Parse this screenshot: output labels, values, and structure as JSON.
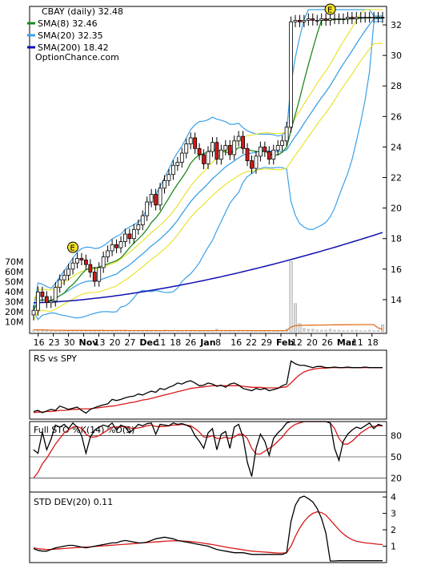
{
  "chart_data": [
    {
      "type": "candlestick",
      "ticker": "CBAY",
      "legend": [
        {
          "label": "CBAY (daily) 32.48",
          "color": "#000000"
        },
        {
          "label": "SMA(8) 32.46",
          "color": "#1c8a1c"
        },
        {
          "label": "SMA(20) 32.35",
          "color": "#3ba0e8"
        },
        {
          "label": "SMA(200) 18.42",
          "color": "#1010b0"
        }
      ],
      "source": "OptionChance.com",
      "event_marker": "E",
      "x_ticks": [
        "16",
        "23",
        "30",
        "Nov",
        "13",
        "20",
        "27",
        "Dec",
        "11",
        "18",
        "26",
        "Jan",
        "8",
        "16",
        "22",
        "29",
        "Feb",
        "12",
        "20",
        "26",
        "Mar",
        "11",
        "18"
      ],
      "y_ticks": [
        14,
        16,
        18,
        20,
        22,
        24,
        26,
        28,
        30,
        32
      ],
      "ylim": [
        12,
        33
      ],
      "volume_ticks": [
        "70M",
        "60M",
        "50M",
        "40M",
        "30M",
        "20M",
        "10M"
      ],
      "volume_ylim": [
        0,
        75
      ],
      "close": [
        13.3,
        14.5,
        14.2,
        13.8,
        13.9,
        14.8,
        15.3,
        15.6,
        16.0,
        16.4,
        16.7,
        16.6,
        16.3,
        15.8,
        15.2,
        16.1,
        16.8,
        17.2,
        17.6,
        17.4,
        17.8,
        18.3,
        18.0,
        18.6,
        18.9,
        19.5,
        20.4,
        20.9,
        20.2,
        21.3,
        21.8,
        22.2,
        22.8,
        23.0,
        23.6,
        24.2,
        24.6,
        23.9,
        23.5,
        22.9,
        23.7,
        24.3,
        23.2,
        23.8,
        24.1,
        23.5,
        24.4,
        24.7,
        23.9,
        23.1,
        22.6,
        23.4,
        24.0,
        23.7,
        23.2,
        23.8,
        24.1,
        24.4,
        25.3,
        32.2,
        32.3,
        32.2,
        32.3,
        32.4,
        32.3,
        32.3,
        32.4,
        32.3,
        32.4,
        32.4,
        32.4,
        32.4,
        32.5,
        32.4,
        32.5,
        32.5,
        32.5,
        32.5,
        32.5,
        32.5,
        32.48
      ],
      "volume": [
        2,
        2,
        1.5,
        1.5,
        1,
        1,
        1.5,
        1,
        1,
        2,
        1.5,
        1,
        1,
        1,
        1.5,
        1,
        1,
        1,
        1.5,
        1,
        1,
        2,
        1,
        1,
        1,
        1.5,
        1,
        1,
        1,
        1,
        2,
        1,
        1,
        1,
        1,
        1.5,
        1,
        1,
        1,
        1,
        1,
        1,
        3,
        1,
        1,
        1,
        1,
        1,
        1,
        1,
        1,
        1,
        1,
        1,
        1.5,
        1,
        1,
        1,
        3,
        70,
        28,
        8,
        4,
        3,
        3,
        2,
        2,
        2,
        3,
        2,
        2,
        1.5,
        1.5,
        2,
        2,
        1.5,
        1.5,
        2,
        1.5,
        2,
        7
      ]
    },
    {
      "type": "line",
      "title": "RS vs SPY",
      "series": [
        "black",
        "red"
      ],
      "rs_line": [
        0.08,
        0.1,
        0.06,
        0.09,
        0.12,
        0.1,
        0.18,
        0.15,
        0.12,
        0.14,
        0.16,
        0.1,
        0.05,
        0.12,
        0.15,
        0.18,
        0.2,
        0.22,
        0.3,
        0.28,
        0.3,
        0.33,
        0.35,
        0.36,
        0.4,
        0.38,
        0.42,
        0.45,
        0.43,
        0.5,
        0.48,
        0.52,
        0.55,
        0.6,
        0.58,
        0.62,
        0.64,
        0.6,
        0.55,
        0.56,
        0.6,
        0.58,
        0.54,
        0.56,
        0.52,
        0.58,
        0.6,
        0.56,
        0.5,
        0.48,
        0.46,
        0.5,
        0.48,
        0.5,
        0.46,
        0.48,
        0.5,
        0.55,
        0.58,
        1.0,
        0.95,
        0.92,
        0.92,
        0.9,
        0.88,
        0.9,
        0.9,
        0.88,
        0.88,
        0.89,
        0.88,
        0.88,
        0.89,
        0.88,
        0.88,
        0.88,
        0.89,
        0.88,
        0.88,
        0.88,
        0.88
      ],
      "rs_ma": [
        0.06,
        0.07,
        0.07,
        0.08,
        0.08,
        0.09,
        0.1,
        0.1,
        0.11,
        0.12,
        0.12,
        0.13,
        0.13,
        0.13,
        0.14,
        0.15,
        0.16,
        0.17,
        0.18,
        0.19,
        0.21,
        0.22,
        0.24,
        0.25,
        0.27,
        0.29,
        0.3,
        0.32,
        0.34,
        0.36,
        0.38,
        0.4,
        0.42,
        0.44,
        0.46,
        0.48,
        0.5,
        0.51,
        0.52,
        0.53,
        0.54,
        0.55,
        0.55,
        0.55,
        0.55,
        0.55,
        0.55,
        0.55,
        0.54,
        0.53,
        0.52,
        0.52,
        0.52,
        0.51,
        0.51,
        0.51,
        0.51,
        0.52,
        0.53,
        0.6,
        0.68,
        0.75,
        0.8,
        0.83,
        0.85,
        0.86,
        0.87,
        0.87,
        0.88,
        0.88,
        0.88,
        0.88,
        0.88,
        0.88,
        0.88,
        0.88,
        0.88,
        0.88,
        0.88,
        0.88,
        0.88
      ]
    },
    {
      "type": "line",
      "title": "Full STO %K(14) %D(5)",
      "y_ticks": [
        20,
        50,
        80
      ],
      "ylim": [
        0,
        100
      ],
      "k": [
        60,
        55,
        85,
        60,
        75,
        95,
        92,
        96,
        90,
        98,
        92,
        80,
        55,
        78,
        88,
        92,
        95,
        93,
        98,
        88,
        95,
        92,
        84,
        90,
        96,
        94,
        97,
        98,
        82,
        96,
        95,
        94,
        98,
        96,
        97,
        95,
        92,
        80,
        72,
        62,
        84,
        90,
        60,
        82,
        86,
        62,
        92,
        96,
        78,
        42,
        22,
        62,
        82,
        72,
        52,
        76,
        84,
        90,
        98,
        100,
        100,
        100,
        100,
        100,
        100,
        100,
        100,
        100,
        98,
        62,
        45,
        72,
        82,
        88,
        92,
        90,
        94,
        98,
        90,
        96,
        94
      ],
      "d": [
        20,
        28,
        40,
        48,
        58,
        68,
        76,
        84,
        88,
        92,
        93,
        90,
        82,
        78,
        78,
        80,
        84,
        88,
        92,
        92,
        93,
        93,
        91,
        90,
        91,
        92,
        94,
        95,
        93,
        93,
        93,
        94,
        95,
        95,
        96,
        95,
        94,
        90,
        85,
        78,
        78,
        80,
        76,
        76,
        78,
        76,
        78,
        82,
        82,
        76,
        62,
        54,
        54,
        58,
        62,
        66,
        72,
        78,
        86,
        92,
        96,
        98,
        100,
        100,
        100,
        100,
        100,
        100,
        98,
        90,
        76,
        68,
        68,
        72,
        78,
        84,
        88,
        92,
        93,
        94,
        94
      ]
    },
    {
      "type": "line",
      "title": "STD DEV(20) 0.11",
      "y_ticks": [
        1,
        2,
        3,
        4
      ],
      "ylim": [
        0,
        4.3
      ],
      "std": [
        0.85,
        0.75,
        0.7,
        0.7,
        0.8,
        0.9,
        0.95,
        1.0,
        1.05,
        1.05,
        1.0,
        0.95,
        0.9,
        0.95,
        1.0,
        1.05,
        1.1,
        1.15,
        1.2,
        1.2,
        1.3,
        1.35,
        1.3,
        1.25,
        1.2,
        1.2,
        1.25,
        1.35,
        1.45,
        1.5,
        1.55,
        1.5,
        1.45,
        1.35,
        1.3,
        1.25,
        1.2,
        1.15,
        1.1,
        1.05,
        1.0,
        0.9,
        0.8,
        0.75,
        0.7,
        0.65,
        0.6,
        0.6,
        0.6,
        0.55,
        0.5,
        0.5,
        0.5,
        0.5,
        0.5,
        0.5,
        0.5,
        0.5,
        0.6,
        2.5,
        3.5,
        3.95,
        4.05,
        3.9,
        3.7,
        3.3,
        2.7,
        1.8,
        0.1,
        0.1,
        0.11,
        0.11,
        0.11,
        0.11,
        0.11,
        0.11,
        0.11,
        0.11,
        0.11,
        0.11,
        0.11
      ],
      "std_ma": [
        0.9,
        0.85,
        0.82,
        0.8,
        0.8,
        0.82,
        0.84,
        0.86,
        0.88,
        0.9,
        0.92,
        0.94,
        0.95,
        0.96,
        0.98,
        1.0,
        1.02,
        1.04,
        1.06,
        1.08,
        1.1,
        1.12,
        1.14,
        1.16,
        1.18,
        1.2,
        1.22,
        1.24,
        1.26,
        1.28,
        1.3,
        1.32,
        1.33,
        1.33,
        1.32,
        1.3,
        1.28,
        1.25,
        1.22,
        1.18,
        1.14,
        1.1,
        1.05,
        1.0,
        0.95,
        0.9,
        0.86,
        0.82,
        0.78,
        0.74,
        0.7,
        0.68,
        0.66,
        0.64,
        0.62,
        0.6,
        0.58,
        0.58,
        0.6,
        1.0,
        1.6,
        2.1,
        2.5,
        2.8,
        3.0,
        3.1,
        3.05,
        2.9,
        2.6,
        2.3,
        2.0,
        1.75,
        1.55,
        1.4,
        1.3,
        1.25,
        1.2,
        1.18,
        1.15,
        1.12,
        1.1
      ]
    }
  ]
}
